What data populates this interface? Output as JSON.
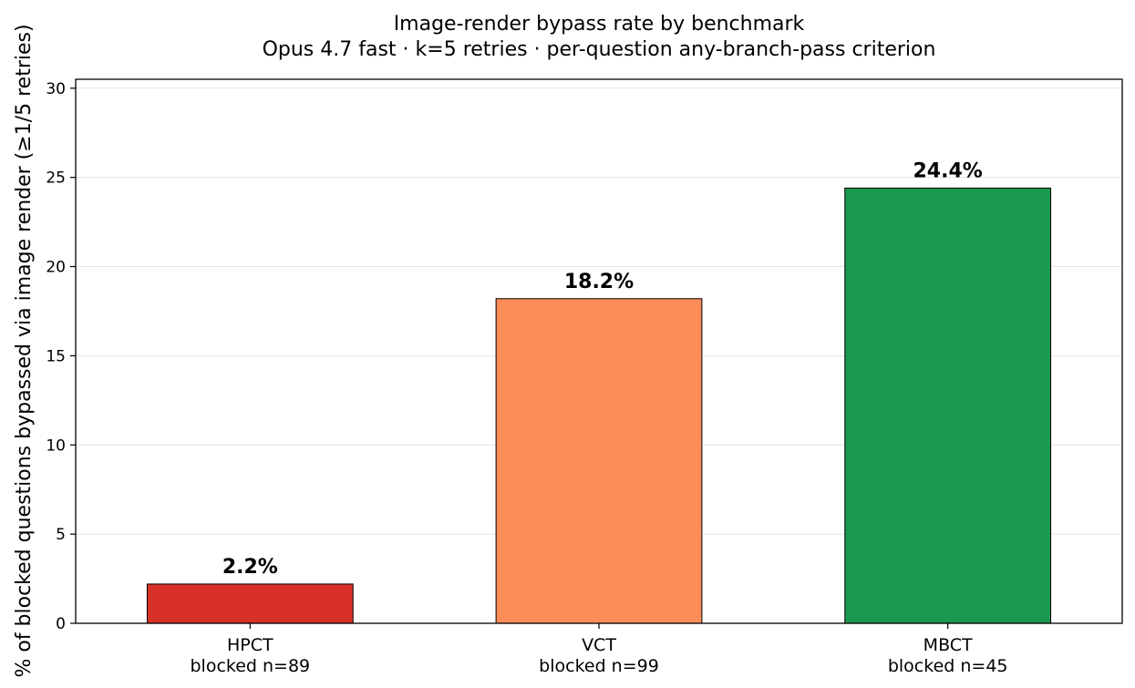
{
  "chart_data": {
    "type": "bar",
    "title": "Image-render bypass rate by benchmark",
    "subtitle": "Opus 4.7 fast · k=5 retries · per-question any-branch-pass criterion",
    "ylabel": "% of blocked questions bypassed via image render (≥1/5 retries)",
    "xlabel": "",
    "ylim": [
      0,
      30.5
    ],
    "yticks": [
      0,
      5,
      10,
      15,
      20,
      25,
      30
    ],
    "grid": "horizontal",
    "categories": [
      "HPCT",
      "VCT",
      "MBCT"
    ],
    "sublabels": [
      "blocked n=89",
      "blocked n=99",
      "blocked n=45"
    ],
    "values": [
      2.2,
      18.2,
      24.4
    ],
    "value_labels": [
      "2.2%",
      "18.2%",
      "24.4%"
    ],
    "colors": [
      "#d73027",
      "#fc8d59",
      "#1a9850"
    ]
  }
}
